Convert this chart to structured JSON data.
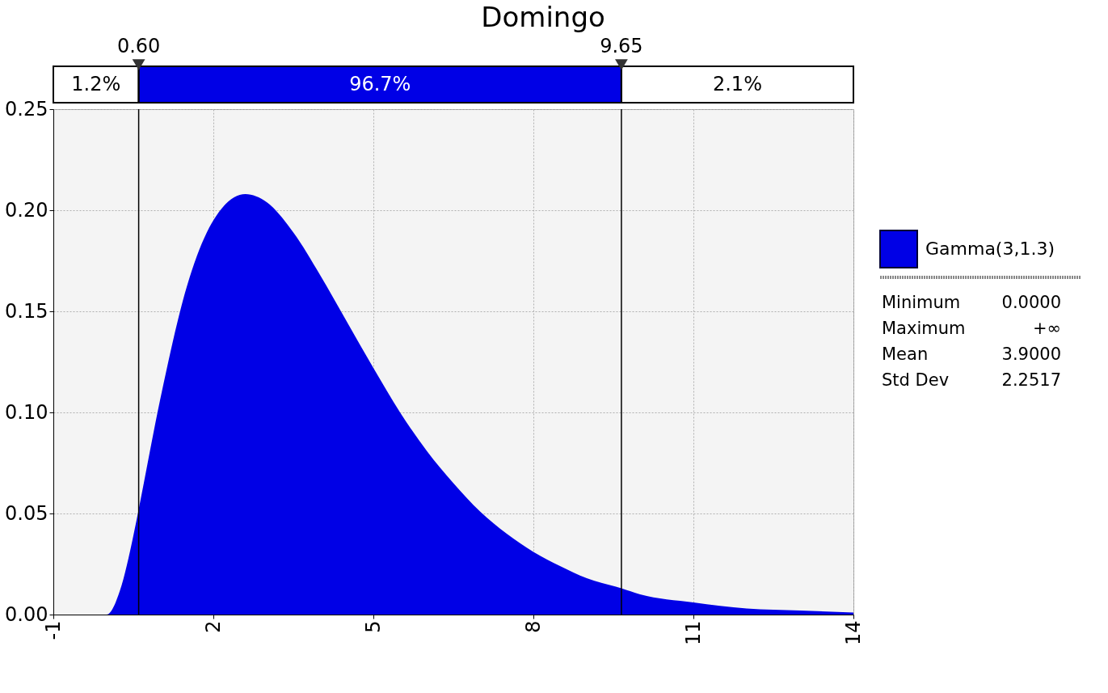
{
  "chart_data": {
    "type": "area",
    "title": "Domingo",
    "x": [
      -1,
      0,
      0.25,
      0.5,
      0.6,
      1,
      1.5,
      2,
      2.6,
      3,
      3.5,
      4,
      4.5,
      5,
      5.5,
      6,
      6.5,
      7,
      7.5,
      8,
      8.5,
      9,
      9.65,
      10,
      11,
      12,
      13,
      14
    ],
    "series": [
      {
        "name": "Gamma(3,1.3)",
        "color": "#0000e6",
        "values": [
          0,
          0,
          0.012,
          0.039,
          0.052,
          0.106,
          0.162,
          0.195,
          0.208,
          0.204,
          0.189,
          0.168,
          0.145,
          0.122,
          0.1,
          0.081,
          0.065,
          0.051,
          0.04,
          0.031,
          0.024,
          0.018,
          0.013,
          0.01,
          0.006,
          0.003,
          0.002,
          0.001
        ]
      }
    ],
    "xlim": [
      -1,
      14
    ],
    "xticks": [
      {
        "value": -1,
        "label": "-1"
      },
      2,
      5,
      8,
      11,
      14
    ],
    "ylim": [
      0,
      0.25
    ],
    "yticks": [
      {
        "value": 0,
        "label": "0.00"
      },
      0.05,
      {
        "value": 0.1,
        "label": "0.10"
      },
      0.15,
      {
        "value": 0.2,
        "label": "0.20"
      },
      0.25
    ],
    "grid": true,
    "legend": "right",
    "ref_lines": [
      {
        "axis": "x",
        "value": 0.6,
        "label": "0.60"
      },
      {
        "axis": "x",
        "value": 9.65,
        "label": "9.65"
      }
    ],
    "annotations": [
      "1.2%",
      "96.7%",
      "2.1%",
      "Minimum",
      "0.0000",
      "Maximum",
      "+∞",
      "Mean",
      "3.9000",
      "Std Dev",
      "2.2517"
    ]
  }
}
